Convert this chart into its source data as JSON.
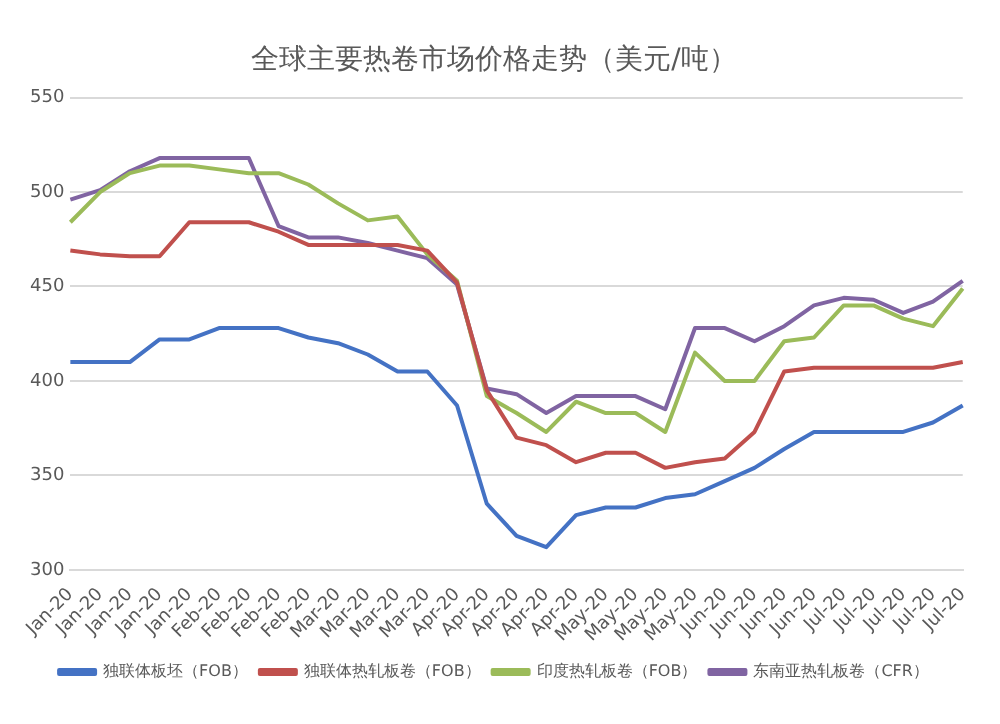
{
  "chart_data": {
    "type": "line",
    "title": "全球主要热卷市场价格走势（美元/吨）",
    "categories": [
      "Jan-20",
      "Jan-20",
      "Jan-20",
      "Jan-20",
      "Jan-20",
      "Feb-20",
      "Feb-20",
      "Feb-20",
      "Feb-20",
      "Mar-20",
      "Mar-20",
      "Mar-20",
      "Mar-20",
      "Apr-20",
      "Apr-20",
      "Apr-20",
      "Apr-20",
      "Apr-20",
      "May-20",
      "May-20",
      "May-20",
      "May-20",
      "Jun-20",
      "Jun-20",
      "Jun-20",
      "Jun-20",
      "Jul-20",
      "Jul-20",
      "Jul-20",
      "Jul-20",
      "Jul-20"
    ],
    "series": [
      {
        "name": "独联体板坯（FOB）",
        "color": "#4472c4",
        "values": [
          410,
          410,
          410,
          422,
          422,
          428,
          428,
          428,
          423,
          420,
          414,
          405,
          405,
          387,
          335,
          318,
          312,
          329,
          333,
          333,
          338,
          340,
          347,
          354,
          364,
          373,
          373,
          373,
          373,
          378,
          387
        ]
      },
      {
        "name": "独联体热轧板卷（FOB）",
        "color": "#c0504d",
        "values": [
          469,
          467,
          466,
          466,
          484,
          484,
          484,
          479,
          472,
          472,
          472,
          472,
          469,
          452,
          395,
          370,
          366,
          357,
          362,
          362,
          354,
          357,
          359,
          373,
          405,
          407,
          407,
          407,
          407,
          407,
          410
        ]
      },
      {
        "name": "印度热轧板卷（FOB）",
        "color": "#9bbb59",
        "values": [
          484,
          500,
          510,
          514,
          514,
          512,
          510,
          510,
          504,
          494,
          485,
          487,
          467,
          453,
          392,
          383,
          373,
          389,
          383,
          383,
          373,
          415,
          400,
          400,
          421,
          423,
          440,
          440,
          433,
          429,
          449
        ]
      },
      {
        "name": "东南亚热轧板卷（CFR）",
        "color": "#8064a2",
        "values": [
          496,
          501,
          511,
          518,
          518,
          518,
          518,
          482,
          476,
          476,
          473,
          469,
          465,
          451,
          396,
          393,
          383,
          392,
          392,
          392,
          385,
          428,
          428,
          421,
          429,
          440,
          444,
          443,
          436,
          442,
          453
        ]
      }
    ],
    "ylim": [
      300,
      550
    ],
    "yticks": [
      300,
      350,
      400,
      450,
      500,
      550
    ],
    "grid": "y",
    "legend": "bottom",
    "marker": "none",
    "line_style": "solid"
  }
}
